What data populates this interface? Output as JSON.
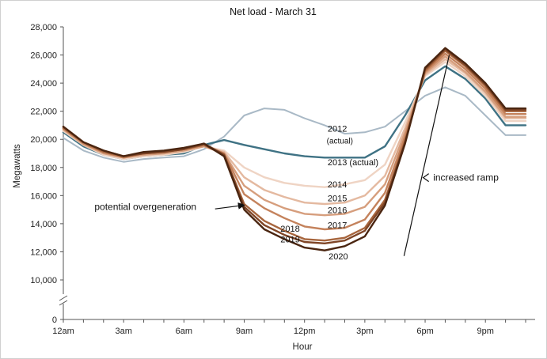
{
  "chart_data": {
    "type": "line",
    "title": "Net load - March 31",
    "xlabel": "Hour",
    "ylabel": "Megawatts",
    "x": [
      0,
      1,
      2,
      3,
      4,
      5,
      6,
      7,
      8,
      9,
      10,
      11,
      12,
      13,
      14,
      15,
      16,
      17,
      18,
      19,
      20,
      21,
      22,
      23
    ],
    "xlim": [
      0,
      23
    ],
    "xticks": [
      {
        "x": 0,
        "label": "12am"
      },
      {
        "x": 3,
        "label": "3am"
      },
      {
        "x": 6,
        "label": "6am"
      },
      {
        "x": 9,
        "label": "9am"
      },
      {
        "x": 12,
        "label": "12pm"
      },
      {
        "x": 15,
        "label": "3pm"
      },
      {
        "x": 18,
        "label": "6pm"
      },
      {
        "x": 21,
        "label": "9pm"
      }
    ],
    "yticks": [
      {
        "y": 28000,
        "label": "28,000"
      },
      {
        "y": 26000,
        "label": "26,000"
      },
      {
        "y": 24000,
        "label": "24,000"
      },
      {
        "y": 22000,
        "label": "22,000"
      },
      {
        "y": 20000,
        "label": "20,000"
      },
      {
        "y": 18000,
        "label": "18,000"
      },
      {
        "y": 16000,
        "label": "16,000"
      },
      {
        "y": 14000,
        "label": "14,000"
      },
      {
        "y": 12000,
        "label": "12,000"
      },
      {
        "y": 10000,
        "label": "10,000"
      },
      {
        "y": 0,
        "label": "0"
      }
    ],
    "ylim": [
      10000,
      28000
    ],
    "axis_break": true,
    "series": [
      {
        "name": "2012 (actual)",
        "color": "#a9b9c6",
        "values": [
          20100,
          19200,
          18700,
          18400,
          18600,
          18700,
          18800,
          19300,
          20200,
          21700,
          22200,
          22100,
          21500,
          21000,
          20400,
          20500,
          20900,
          22000,
          23100,
          23700,
          23100,
          21700,
          20300,
          20300
        ]
      },
      {
        "name": "2013 (actual)",
        "color": "#3f7284",
        "values": [
          20500,
          19500,
          18900,
          18600,
          18800,
          18900,
          19000,
          19600,
          19950,
          19600,
          19300,
          19000,
          18800,
          18700,
          18700,
          18700,
          19500,
          21700,
          24200,
          25200,
          24300,
          22900,
          21000,
          21000
        ]
      },
      {
        "name": "2014",
        "color": "#efd4c4",
        "values": [
          20600,
          19600,
          18900,
          18600,
          18800,
          18900,
          19100,
          19500,
          19200,
          18000,
          17300,
          16900,
          16700,
          16600,
          16800,
          17100,
          18200,
          21200,
          24500,
          25500,
          24500,
          23100,
          21300,
          21300
        ]
      },
      {
        "name": "2015",
        "color": "#e4b9a0",
        "values": [
          20700,
          19600,
          19000,
          18700,
          18900,
          19000,
          19200,
          19500,
          19100,
          17300,
          16400,
          15900,
          15500,
          15400,
          15500,
          16000,
          17400,
          20800,
          24600,
          25700,
          24700,
          23300,
          21500,
          21500
        ]
      },
      {
        "name": "2016",
        "color": "#d69e7d",
        "values": [
          20700,
          19700,
          19000,
          18700,
          18900,
          19000,
          19200,
          19500,
          19000,
          16700,
          15700,
          15100,
          14700,
          14600,
          14700,
          15200,
          16800,
          20500,
          24700,
          25900,
          24800,
          23400,
          21600,
          21600
        ]
      },
      {
        "name": "2017",
        "color": "#c4825c",
        "values": [
          20800,
          19700,
          19100,
          18700,
          19000,
          19100,
          19300,
          19600,
          19000,
          16100,
          15100,
          14400,
          13800,
          13600,
          13700,
          14300,
          16200,
          20200,
          24800,
          26100,
          25000,
          23600,
          21800,
          21800
        ]
      },
      {
        "name": "2018",
        "color": "#a7653d",
        "values": [
          20800,
          19800,
          19100,
          18800,
          19000,
          19100,
          19300,
          19600,
          18900,
          15400,
          14200,
          13500,
          12900,
          12800,
          13000,
          13700,
          15700,
          19900,
          24900,
          26300,
          25200,
          23800,
          22000,
          22000
        ]
      },
      {
        "name": "2019",
        "color": "#7f4526",
        "values": [
          20900,
          19800,
          19200,
          18800,
          19000,
          19100,
          19300,
          19700,
          18900,
          15200,
          13900,
          13200,
          12700,
          12600,
          12800,
          13500,
          15500,
          19800,
          25000,
          26400,
          25300,
          23900,
          22100,
          22100
        ]
      },
      {
        "name": "2020",
        "color": "#4a2510",
        "values": [
          20900,
          19800,
          19200,
          18800,
          19100,
          19200,
          19400,
          19700,
          18800,
          15000,
          13600,
          12900,
          12300,
          12100,
          12400,
          13100,
          15300,
          19700,
          25100,
          26500,
          25400,
          24000,
          22200,
          22200
        ]
      }
    ],
    "series_labels": [
      {
        "text": "2012",
        "x": 13.15,
        "y": 20550
      },
      {
        "text": "(actual)",
        "x": 13.1,
        "y": 19700,
        "small": true
      },
      {
        "text": "2013 (actual)",
        "x": 13.15,
        "y": 18150
      },
      {
        "text": "2014",
        "x": 13.15,
        "y": 16580
      },
      {
        "text": "2015",
        "x": 13.15,
        "y": 15590
      },
      {
        "text": "2016",
        "x": 13.15,
        "y": 14750
      },
      {
        "text": "2017",
        "x": 13.15,
        "y": 13680
      },
      {
        "text": "2018",
        "x": 10.8,
        "y": 13420
      },
      {
        "text": "2019",
        "x": 10.8,
        "y": 12670
      },
      {
        "text": "2020",
        "x": 13.2,
        "y": 11470
      }
    ],
    "annotations": [
      {
        "text": "potential overgeneration",
        "x": 1.55,
        "y": 14980,
        "arrow_from": [
          7.55,
          15050
        ],
        "arrow_to": [
          9.0,
          15320
        ]
      },
      {
        "text": "increased ramp",
        "x": 18.4,
        "y": 17050,
        "bracket_top": [
          19.2,
          26000
        ],
        "bracket_bottom": [
          16.95,
          11700
        ]
      }
    ]
  }
}
